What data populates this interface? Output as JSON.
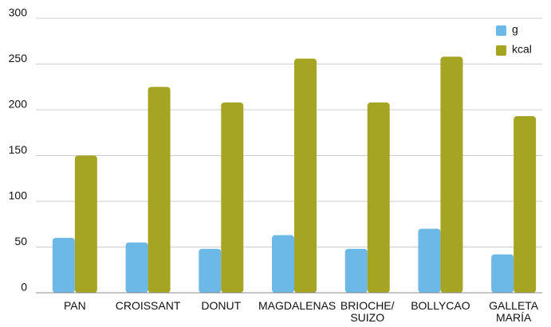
{
  "chart_data": {
    "type": "bar",
    "categories": [
      "PAN",
      "CROISSANT",
      "DONUT",
      "MAGDALENAS",
      "BRIOCHE/\nSUIZO",
      "BOLLYCAO",
      "GALLETA\nMARÍA"
    ],
    "series": [
      {
        "name": "g",
        "color": "#6cb8e6",
        "values": [
          60,
          55,
          48,
          63,
          48,
          70,
          42
        ]
      },
      {
        "name": "kcal",
        "color": "#a6a523",
        "values": [
          150,
          225,
          208,
          256,
          208,
          258,
          193
        ]
      }
    ],
    "ylim": [
      0,
      300
    ],
    "yticks": [
      0,
      50,
      100,
      150,
      200,
      250,
      300
    ],
    "grid": true,
    "legend": "top-right"
  }
}
